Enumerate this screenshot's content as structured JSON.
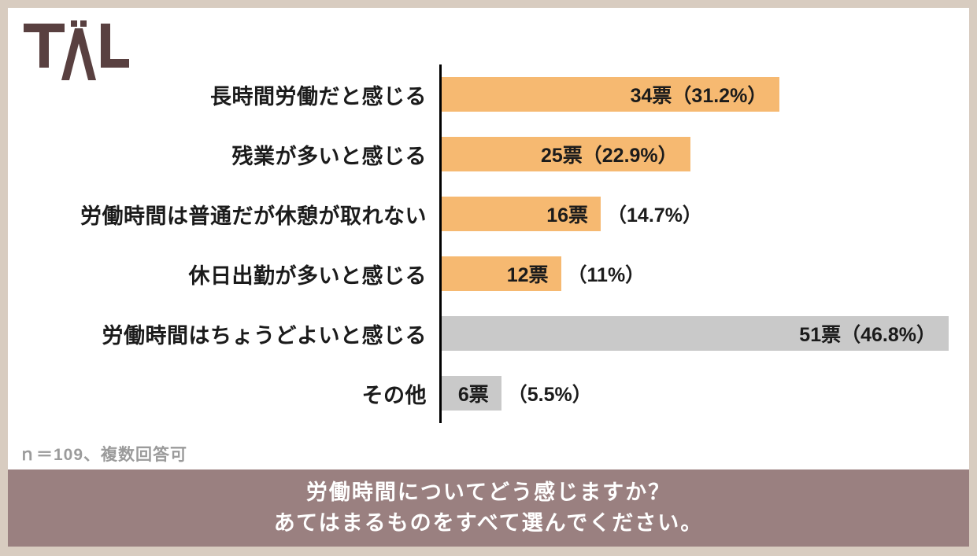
{
  "logo": {
    "text": "TAL"
  },
  "chart_data": {
    "type": "bar",
    "orientation": "horizontal",
    "title": "",
    "categories": [
      "長時間労働だと感じる",
      "残業が多いと感じる",
      "労働時間は普通だが休憩が取れない",
      "休日出勤が多いと感じる",
      "労働時間はちょうどよいと感じる",
      "その他"
    ],
    "values": [
      34,
      25,
      16,
      12,
      51,
      6
    ],
    "percentages": [
      31.2,
      22.9,
      14.7,
      11,
      46.8,
      5.5
    ],
    "labels_inside": [
      "34票（31.2%）",
      "25票（22.9%）",
      "16票",
      "12票",
      "51票（46.8%）",
      "6票"
    ],
    "labels_outside": [
      "",
      "",
      "（14.7%）",
      "（11%）",
      "",
      "（5.5%）"
    ],
    "bar_colors": [
      "#f6b971",
      "#f6b971",
      "#f6b971",
      "#f6b971",
      "#c9c9c9",
      "#c9c9c9"
    ],
    "xmax": 51,
    "xlabel": "",
    "ylabel": "",
    "grid": false,
    "legend": false,
    "note": "ｎ＝109、複数回答可"
  },
  "footer": {
    "line1": "労働時間についてどう感じますか？",
    "line2": "あてはまるものをすべて選んでください。"
  },
  "colors": {
    "accent_orange": "#f6b971",
    "bar_gray": "#c9c9c9",
    "banner_mauve": "#9a8080",
    "frame_tan": "#d8ccc0",
    "logo_maroon": "#594040"
  }
}
